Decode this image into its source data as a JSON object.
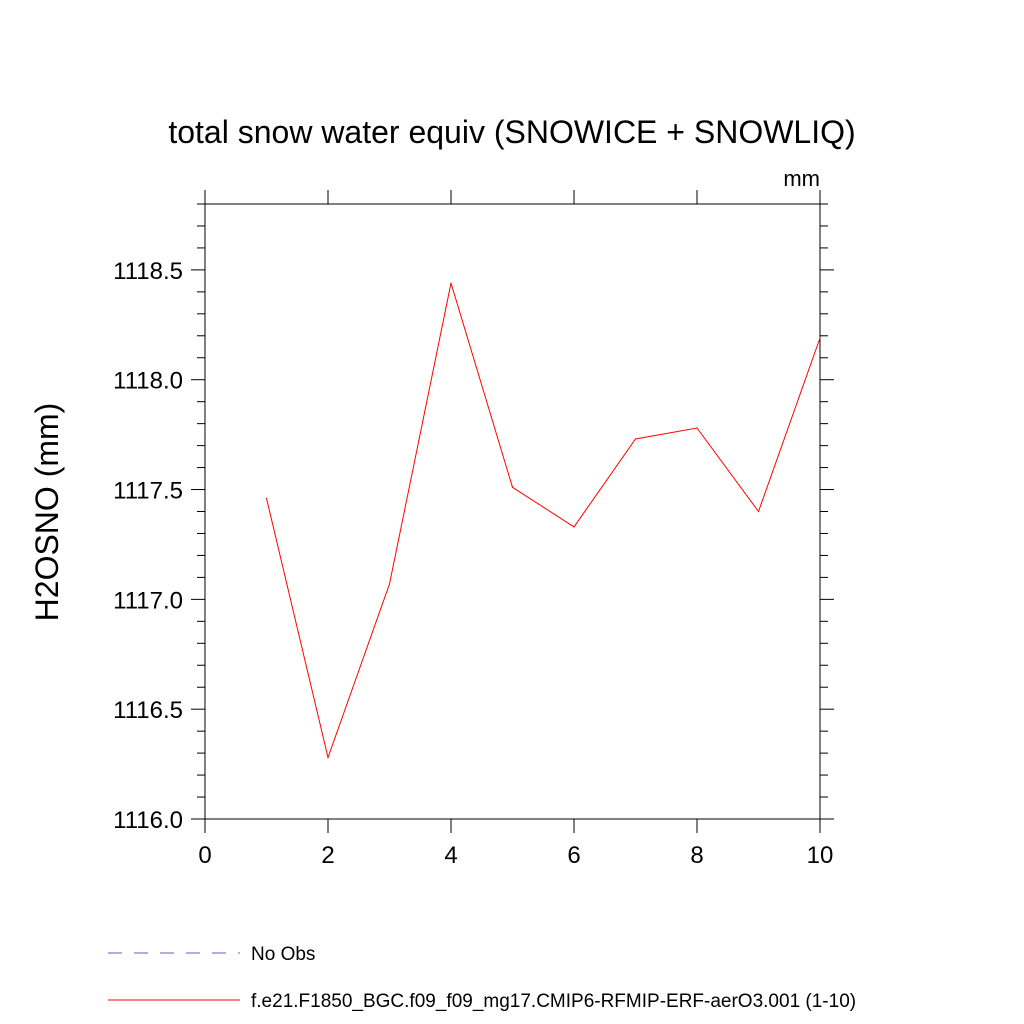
{
  "chart_data": {
    "type": "line",
    "title": "total snow water equiv (SNOWICE + SNOWLIQ)",
    "units": "mm",
    "ylabel": "H2OSNO  (mm)",
    "xlabel": "",
    "xlim": [
      0,
      10
    ],
    "ylim": [
      1116.0,
      1118.8
    ],
    "x_ticks": [
      0,
      2,
      4,
      6,
      8,
      10
    ],
    "x_tick_labels": [
      "0",
      "2",
      "4",
      "6",
      "8",
      "10"
    ],
    "y_ticks": [
      1116.0,
      1116.5,
      1117.0,
      1117.5,
      1118.0,
      1118.5
    ],
    "y_tick_labels": [
      "1116.0",
      "1116.5",
      "1117.0",
      "1117.5",
      "1118.0",
      "1118.5"
    ],
    "grid": false,
    "series": [
      {
        "name": "f.e21.F1850_BGC.f09_f09_mg17.CMIP6-RFMIP-ERF-aerO3.001 (1-10)",
        "color": "#ff0000",
        "x": [
          1,
          2,
          3,
          4,
          5,
          6,
          7,
          8,
          9,
          10
        ],
        "y": [
          1117.46,
          1116.28,
          1117.07,
          1118.44,
          1117.51,
          1117.33,
          1117.73,
          1117.78,
          1117.4,
          1118.19
        ]
      }
    ],
    "legend": [
      {
        "label": "No Obs",
        "color": "#6a5acd",
        "style": "dashed"
      },
      {
        "label": "f.e21.F1850_BGC.f09_f09_mg17.CMIP6-RFMIP-ERF-aerO3.001 (1-10)",
        "color": "#ff0000",
        "style": "solid"
      }
    ],
    "legend_position": "bottom"
  }
}
